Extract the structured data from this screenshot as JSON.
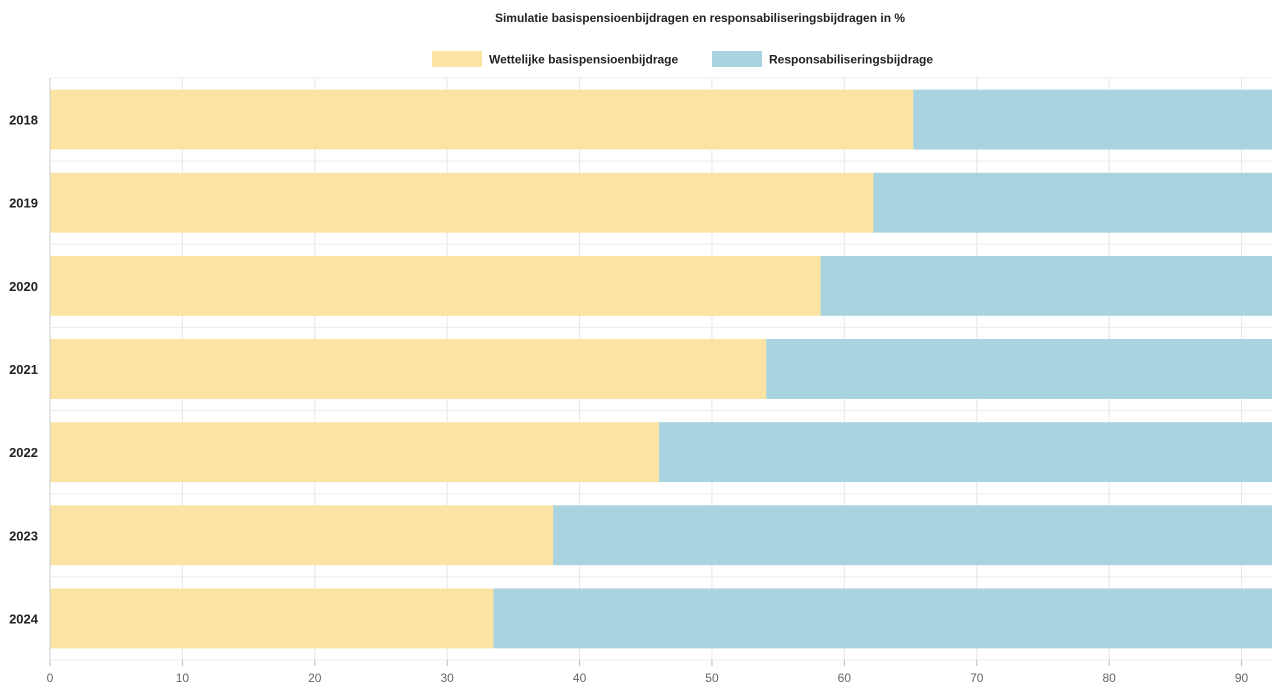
{
  "chart_data": {
    "type": "bar",
    "orientation": "horizontal",
    "stacked": true,
    "title": "Simulatie basispensioenbijdragen en responsabiliseringsbijdragen in %",
    "xlabel": "",
    "ylabel": "",
    "categories": [
      "2018",
      "2019",
      "2020",
      "2021",
      "2022",
      "2023",
      "2024"
    ],
    "series": [
      {
        "name": "Wettelijke basispensioenbijdrage",
        "color": "#fbe3a4",
        "values": [
          65.2,
          62.2,
          58.2,
          54.1,
          46.0,
          38.0,
          33.5
        ]
      },
      {
        "name": "Responsabiliseringsbijdrage",
        "color": "#a9d3df",
        "values": [
          27.1,
          30.1,
          34.1,
          38.2,
          46.3,
          54.3,
          58.8
        ]
      }
    ],
    "xlim": [
      0,
      92.3
    ],
    "xticks": [
      "0",
      "10",
      "20",
      "30",
      "40",
      "50",
      "60",
      "70",
      "80",
      "90"
    ],
    "grid": true,
    "legend_position": "top-center"
  }
}
